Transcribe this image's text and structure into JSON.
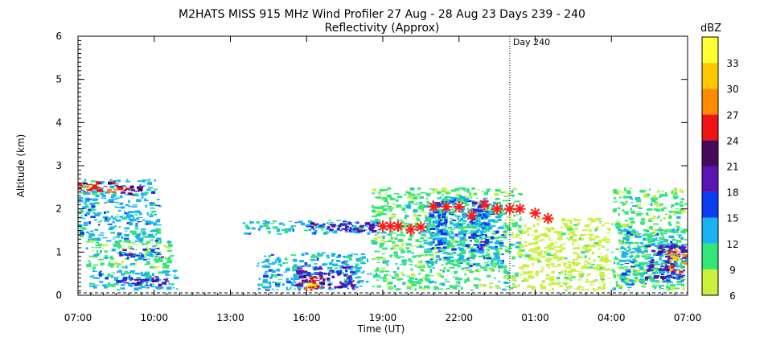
{
  "chart_data": {
    "type": "heatmap",
    "title": "M2HATS MISS 915 MHz Wind Profiler  27 Aug - 28 Aug 23 Days 239 - 240",
    "subtitle": "Reflectivity (Approx)",
    "xlabel": "Time (UT)",
    "ylabel": "Altitude (km)",
    "x_ticks": [
      "07:00",
      "10:00",
      "13:00",
      "16:00",
      "19:00",
      "22:00",
      "01:00",
      "04:00",
      "07:00"
    ],
    "x_range_hours": [
      0,
      24
    ],
    "ylim": [
      0,
      6
    ],
    "y_ticks": [
      "0",
      "1",
      "2",
      "3",
      "4",
      "5",
      "6"
    ],
    "day_marker": {
      "label": "Day 240",
      "x_hours": 17
    },
    "colorbar": {
      "label": "dBZ",
      "ticks": [
        "6",
        "9",
        "12",
        "15",
        "18",
        "21",
        "24",
        "27",
        "30",
        "33"
      ],
      "colors": [
        "#c8f03c",
        "#32e678",
        "#19b4f0",
        "#0a3cf0",
        "#5a14b4",
        "#460a5a",
        "#f01414",
        "#ff8c00",
        "#ffc800",
        "#ffff32"
      ]
    },
    "markers": [
      {
        "x_hours": 12.0,
        "y_km": 1.6
      },
      {
        "x_hours": 12.3,
        "y_km": 1.6
      },
      {
        "x_hours": 12.6,
        "y_km": 1.6
      },
      {
        "x_hours": 13.1,
        "y_km": 1.52
      },
      {
        "x_hours": 13.5,
        "y_km": 1.58
      },
      {
        "x_hours": 14.0,
        "y_km": 2.05
      },
      {
        "x_hours": 14.5,
        "y_km": 2.05
      },
      {
        "x_hours": 15.0,
        "y_km": 2.05
      },
      {
        "x_hours": 15.5,
        "y_km": 1.85
      },
      {
        "x_hours": 16.0,
        "y_km": 2.1
      },
      {
        "x_hours": 16.5,
        "y_km": 2.0
      },
      {
        "x_hours": 17.0,
        "y_km": 2.0
      },
      {
        "x_hours": 17.4,
        "y_km": 2.0
      },
      {
        "x_hours": 18.0,
        "y_km": 1.9
      },
      {
        "x_hours": 18.5,
        "y_km": 1.78
      }
    ],
    "echo_regions": [
      {
        "x0": 0.0,
        "x1": 3.3,
        "y0": 1.2,
        "y1": 2.7,
        "level": 2
      },
      {
        "x0": 0.0,
        "x1": 1.8,
        "y0": 2.35,
        "y1": 2.65,
        "level": 6
      },
      {
        "x0": 1.5,
        "x1": 2.6,
        "y0": 2.3,
        "y1": 2.55,
        "level": 5
      },
      {
        "x0": 0.3,
        "x1": 3.8,
        "y0": 0.6,
        "y1": 1.3,
        "level": 1
      },
      {
        "x0": 1.6,
        "x1": 3.4,
        "y0": 0.8,
        "y1": 1.1,
        "level": 3
      },
      {
        "x0": 0.4,
        "x1": 4.0,
        "y0": 0.1,
        "y1": 0.6,
        "level": 2
      },
      {
        "x0": 1.6,
        "x1": 3.6,
        "y0": 0.2,
        "y1": 0.45,
        "level": 4
      },
      {
        "x0": 6.4,
        "x1": 12.0,
        "y0": 1.4,
        "y1": 1.75,
        "level": 2
      },
      {
        "x0": 9.0,
        "x1": 12.0,
        "y0": 1.45,
        "y1": 1.7,
        "level": 4
      },
      {
        "x0": 7.0,
        "x1": 11.5,
        "y0": 0.1,
        "y1": 1.0,
        "level": 2
      },
      {
        "x0": 8.5,
        "x1": 11.0,
        "y0": 0.1,
        "y1": 0.7,
        "level": 4
      },
      {
        "x0": 8.7,
        "x1": 9.8,
        "y0": 0.1,
        "y1": 0.45,
        "level": 6
      },
      {
        "x0": 8.9,
        "x1": 9.4,
        "y0": 0.1,
        "y1": 0.3,
        "level": 8
      },
      {
        "x0": 11.5,
        "x1": 17.5,
        "y0": 0.1,
        "y1": 2.5,
        "level": 1
      },
      {
        "x0": 13.6,
        "x1": 16.8,
        "y0": 0.6,
        "y1": 2.3,
        "level": 2
      },
      {
        "x0": 13.8,
        "x1": 14.6,
        "y0": 1.0,
        "y1": 2.2,
        "level": 3
      },
      {
        "x0": 15.4,
        "x1": 16.2,
        "y0": 1.0,
        "y1": 2.2,
        "level": 3
      },
      {
        "x0": 17.3,
        "x1": 21.0,
        "y0": 0.1,
        "y1": 1.8,
        "level": 0
      },
      {
        "x0": 21.0,
        "x1": 24.0,
        "y0": 0.1,
        "y1": 2.5,
        "level": 1
      },
      {
        "x0": 21.3,
        "x1": 24.0,
        "y0": 0.2,
        "y1": 1.6,
        "level": 2
      },
      {
        "x0": 22.3,
        "x1": 24.0,
        "y0": 0.3,
        "y1": 1.2,
        "level": 4
      },
      {
        "x0": 23.2,
        "x1": 24.0,
        "y0": 0.5,
        "y1": 1.1,
        "level": 7
      }
    ]
  }
}
